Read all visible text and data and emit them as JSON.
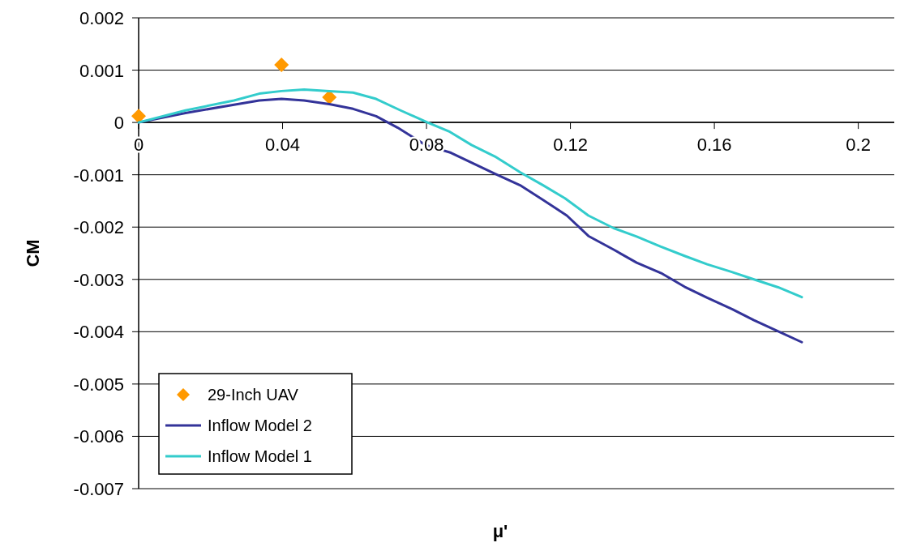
{
  "chart_data": {
    "type": "line",
    "xlabel": "μ'",
    "ylabel": "CM",
    "xlim": [
      0,
      0.21
    ],
    "xticks": [
      0,
      0.04,
      0.08,
      0.12,
      0.16,
      0.2
    ],
    "ylim": [
      -0.007,
      0.002
    ],
    "yticks": [
      -0.007,
      -0.006,
      -0.005,
      -0.004,
      -0.003,
      -0.002,
      -0.001,
      0,
      0.001,
      0.002
    ],
    "grid": "y",
    "legend": "bottom left",
    "series": [
      {
        "name": "29-Inch UAV",
        "type": "scatter",
        "marker": "diamond",
        "color": "#ff9900",
        "x": [
          0,
          0.0397,
          0.053
        ],
        "values": [
          0.00012,
          0.0011,
          0.00048
        ]
      },
      {
        "name": "Inflow Model 2",
        "color": "#333399",
        "x": [
          0,
          0.013,
          0.0265,
          0.0335,
          0.0397,
          0.046,
          0.053,
          0.0596,
          0.066,
          0.072,
          0.0797,
          0.0868,
          0.099,
          0.106,
          0.1124,
          0.119,
          0.125,
          0.132,
          0.1384,
          0.1455,
          0.1517,
          0.158,
          0.165,
          0.171,
          0.177,
          0.1843
        ],
        "values": [
          0,
          0.00018,
          0.00034,
          0.00042,
          0.00045,
          0.00042,
          0.00035,
          0.00026,
          0.00012,
          -0.0001,
          -0.00043,
          -0.00058,
          -0.00098,
          -0.0012,
          -0.00148,
          -0.00178,
          -0.00217,
          -0.00243,
          -0.00268,
          -0.00289,
          -0.00314,
          -0.00335,
          -0.00357,
          -0.00378,
          -0.00397,
          -0.0042
        ]
      },
      {
        "name": "Inflow Model 1",
        "color": "#33cccc",
        "x": [
          0,
          0.013,
          0.0265,
          0.0335,
          0.0397,
          0.046,
          0.053,
          0.0596,
          0.066,
          0.0728,
          0.0803,
          0.0865,
          0.0925,
          0.099,
          0.106,
          0.1124,
          0.1185,
          0.125,
          0.132,
          0.1384,
          0.145,
          0.1517,
          0.158,
          0.1645,
          0.171,
          0.1777,
          0.1843
        ],
        "values": [
          0,
          0.00023,
          0.00042,
          0.00055,
          0.0006,
          0.00063,
          0.0006,
          0.00057,
          0.00045,
          0.00023,
          0,
          -0.00018,
          -0.00043,
          -0.00065,
          -0.00095,
          -0.0012,
          -0.00145,
          -0.00178,
          -0.00202,
          -0.00218,
          -0.00237,
          -0.00255,
          -0.00271,
          -0.00285,
          -0.003,
          -0.00315,
          -0.00334
        ]
      }
    ]
  }
}
